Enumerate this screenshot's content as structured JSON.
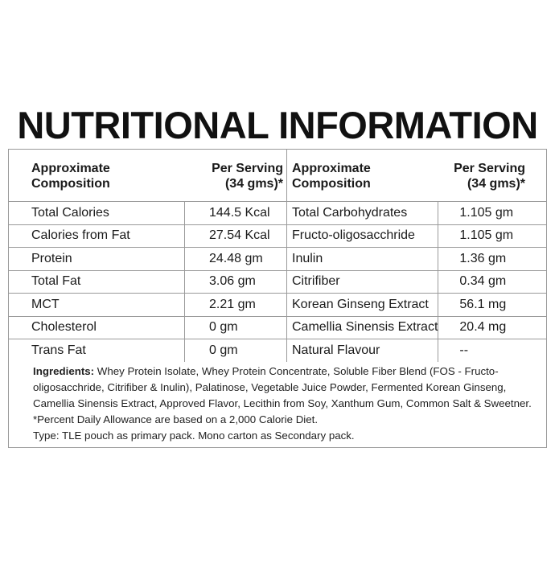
{
  "title": "NUTRITIONAL INFORMATION",
  "table": {
    "headers": {
      "composition_line1": "Approximate",
      "composition_line2": "Composition",
      "serving_line1": "Per Serving",
      "serving_line2": "(34 gms)*"
    },
    "rows": [
      {
        "left_name": "Total Calories",
        "left_value": "144.5 Kcal",
        "right_name": "Total Carbohydrates",
        "right_value": "1.105 gm"
      },
      {
        "left_name": "Calories from Fat",
        "left_value": "27.54 Kcal",
        "right_name": "Fructo-oligosacchride",
        "right_value": "1.105 gm"
      },
      {
        "left_name": "Protein",
        "left_value": "24.48 gm",
        "right_name": "Inulin",
        "right_value": "1.36 gm"
      },
      {
        "left_name": "Total Fat",
        "left_value": "3.06 gm",
        "right_name": "Citrifiber",
        "right_value": "0.34 gm"
      },
      {
        "left_name": "MCT",
        "left_value": "2.21 gm",
        "right_name": "Korean Ginseng Extract",
        "right_value": "56.1 mg"
      },
      {
        "left_name": "Cholesterol",
        "left_value": "0 gm",
        "right_name": "Camellia Sinensis Extract",
        "right_value": "20.4 mg"
      },
      {
        "left_name": "Trans Fat",
        "left_value": "0 gm",
        "right_name": "Natural Flavour",
        "right_value": "--"
      }
    ]
  },
  "ingredients": {
    "label": "Ingredients:",
    "text": " Whey Protein Isolate, Whey Protein Concentrate, Soluble Fiber Blend (FOS - Fructo-oligosacchride, Citrifiber & Inulin), Palatinose, Vegetable Juice Powder, Fermented Korean Ginseng, Camellia Sinensis Extract, Approved Flavor, Lecithin from Soy, Xanthum Gum, Common Salt & Sweetner.",
    "note": "*Percent Daily Allowance are based on a 2,000 Calorie Diet.",
    "type": "Type: TLE pouch as primary pack. Mono carton as Secondary pack."
  }
}
